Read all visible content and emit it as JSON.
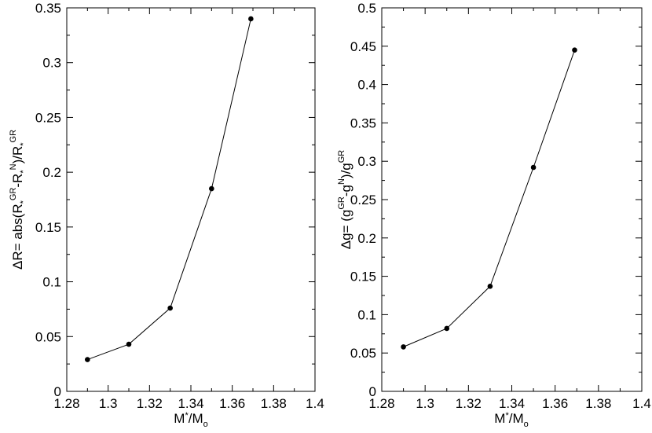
{
  "chart_data": [
    {
      "type": "line",
      "title": "",
      "xlabel": "M*/Mo",
      "ylabel": "ΔR= abs(R*GR-R*N)/R*GR",
      "xlim": [
        1.28,
        1.4
      ],
      "ylim": [
        0,
        0.35
      ],
      "x_ticks": [
        1.28,
        1.3,
        1.32,
        1.34,
        1.36,
        1.38,
        1.4
      ],
      "x_tick_labels": [
        "1.28",
        "1.3",
        "1.32",
        "1.34",
        "1.36",
        "1.38",
        "1.4"
      ],
      "y_ticks": [
        0,
        0.05,
        0.1,
        0.15,
        0.2,
        0.25,
        0.3,
        0.35
      ],
      "y_tick_labels": [
        "0",
        "0.05",
        "0.1",
        "0.15",
        "0.2",
        "0.25",
        "0.3",
        "0.35"
      ],
      "grid": false,
      "legend": "none",
      "series": [
        {
          "x": [
            1.29,
            1.31,
            1.33,
            1.35,
            1.369
          ],
          "values": [
            0.029,
            0.043,
            0.076,
            0.185,
            0.34
          ]
        }
      ]
    },
    {
      "type": "line",
      "title": "",
      "xlabel": "M*/Mo",
      "ylabel": "Δg= (gGR-gN)/gGR",
      "xlim": [
        1.28,
        1.4
      ],
      "ylim": [
        0,
        0.5
      ],
      "x_ticks": [
        1.28,
        1.3,
        1.32,
        1.34,
        1.36,
        1.38,
        1.4
      ],
      "x_tick_labels": [
        "1.28",
        "1.3",
        "1.32",
        "1.34",
        "1.36",
        "1.38",
        "1.4"
      ],
      "y_ticks": [
        0,
        0.05,
        0.1,
        0.15,
        0.2,
        0.25,
        0.3,
        0.35,
        0.4,
        0.45,
        0.5
      ],
      "y_tick_labels": [
        "0",
        "0.05",
        "0.1",
        "0.15",
        "0.2",
        "0.25",
        "0.3",
        "0.35",
        "0.4",
        "0.45",
        "0.5"
      ],
      "grid": false,
      "legend": "none",
      "series": [
        {
          "x": [
            1.29,
            1.31,
            1.33,
            1.35,
            1.369
          ],
          "values": [
            0.058,
            0.082,
            0.137,
            0.292,
            0.445
          ]
        }
      ]
    }
  ]
}
